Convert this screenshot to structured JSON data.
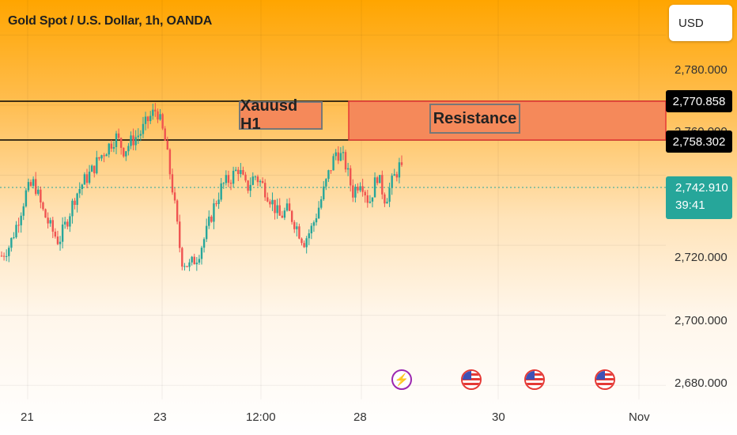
{
  "header": {
    "title": "Gold Spot / U.S. Dollar, 1h, OANDA",
    "currency": "USD"
  },
  "annotations": {
    "box_label": "Xauusd H1",
    "zone_label": "Resistance",
    "zone_color": "#f5895a",
    "zone_border_color": "#e53935"
  },
  "price_labels": {
    "upper": "2,770.858",
    "lower": "2,758.302",
    "current": "2,742.910",
    "countdown": "39:41"
  },
  "colors": {
    "up": "#26a69a",
    "down": "#ef5350",
    "current_line": "#26a69a"
  },
  "events": [
    {
      "icon": "lightning-icon"
    },
    {
      "icon": "us-flag-icon"
    },
    {
      "icon": "us-flag-icon"
    },
    {
      "icon": "us-flag-icon"
    }
  ],
  "chart_data": {
    "type": "candlestick",
    "title": "Gold Spot / U.S. Dollar, 1h, OANDA",
    "y_ticks": [
      "2,780.000",
      "2,720.000",
      "2,700.000",
      "2,680.000"
    ],
    "x_ticks": [
      "21",
      "23",
      "12:00",
      "28",
      "30",
      "Nov"
    ],
    "ylim": [
      2676,
      2790
    ],
    "levels": [
      2770.858,
      2758.302
    ],
    "current_price": 2742.91,
    "close_path": [
      2717,
      2720,
      2727,
      2735,
      2738,
      2730,
      2725,
      2721,
      2727,
      2734,
      2738,
      2741,
      2745,
      2748,
      2751,
      2747,
      2750,
      2752,
      2756,
      2759,
      2750,
      2735,
      2716,
      2714,
      2717,
      2723,
      2731,
      2737,
      2739,
      2742,
      2736,
      2740,
      2737,
      2733,
      2728,
      2730,
      2726,
      2721,
      2725,
      2732,
      2740,
      2747,
      2744,
      2735,
      2739,
      2732,
      2740,
      2733,
      2739,
      2744
    ]
  }
}
